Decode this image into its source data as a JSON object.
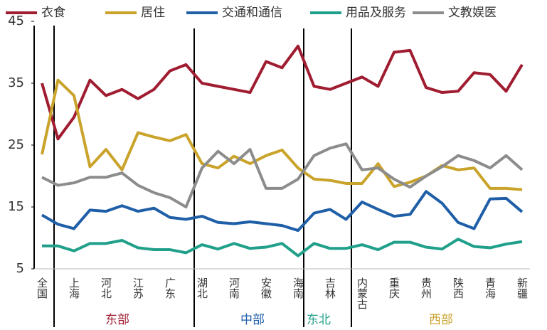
{
  "chart_data": {
    "type": "line",
    "categories": [
      "全国",
      null,
      "上海",
      null,
      "河北",
      null,
      "江苏",
      null,
      "广东",
      null,
      "湖北",
      null,
      "河南",
      null,
      "安徽",
      null,
      "海南",
      null,
      "吉林",
      null,
      "内蒙古",
      null,
      "重庆",
      null,
      "贵州",
      null,
      "陕西",
      null,
      "青海",
      null,
      "新疆"
    ],
    "series": [
      {
        "name": "衣食",
        "color": "#a01c30",
        "values": [
          35,
          26,
          29.5,
          35.5,
          33,
          34,
          32.5,
          34,
          37,
          38,
          35,
          34.5,
          34,
          33.5,
          38.5,
          37.5,
          41,
          34.5,
          34,
          35,
          36,
          34.5,
          40,
          40.3,
          34.3,
          33.5,
          33.7,
          36.7,
          36.4,
          33.7,
          38
        ]
      },
      {
        "name": "居住",
        "color": "#c9a32a",
        "values": [
          23.5,
          35.5,
          33,
          21.5,
          24.3,
          21,
          27,
          26.3,
          25.7,
          26.7,
          22,
          21.3,
          23.2,
          22,
          23.3,
          24.2,
          21.3,
          19.5,
          19.3,
          18.8,
          18.8,
          22,
          18.3,
          19,
          20,
          21.7,
          21,
          21.3,
          18,
          18,
          17.8
        ]
      },
      {
        "name": "交通和通信",
        "color": "#1f5fa8",
        "values": [
          13.7,
          12.2,
          11.5,
          14.5,
          14.3,
          15.2,
          14.3,
          14.8,
          13.3,
          13,
          13.5,
          12.5,
          12.3,
          12.6,
          12.3,
          12,
          11.2,
          14,
          14.6,
          13,
          15.8,
          14.6,
          13.5,
          13.8,
          17.5,
          15.6,
          12.5,
          11.5,
          16.3,
          16.4,
          14.2
        ]
      },
      {
        "name": "用品及服务",
        "color": "#20a08a",
        "values": [
          8.7,
          8.7,
          7.9,
          9.1,
          9.1,
          9.6,
          8.4,
          8.1,
          8.1,
          7.6,
          8.9,
          8.2,
          9.1,
          8.3,
          8.5,
          9.1,
          7.1,
          9.1,
          8.3,
          8.3,
          8.9,
          8.1,
          9.3,
          9.3,
          8.5,
          8.2,
          9.8,
          8.6,
          8.4,
          9,
          9.4
        ]
      },
      {
        "name": "文教娱医",
        "color": "#8c8c8c",
        "values": [
          19.8,
          18.5,
          18.9,
          19.8,
          19.8,
          20.5,
          18.5,
          17.3,
          16.5,
          15,
          21.3,
          24,
          22,
          24.3,
          18,
          18,
          19.5,
          23.3,
          24.5,
          25.2,
          21,
          21.3,
          19.5,
          18.2,
          20,
          21.5,
          23.3,
          22.5,
          21.3,
          23.3,
          21
        ]
      }
    ],
    "ylim": [
      5,
      45
    ],
    "yticks": [
      5,
      15,
      25,
      35,
      45
    ],
    "annotations": [
      {
        "text": "东部",
        "color": "#a01c30"
      },
      {
        "text": "中部",
        "color": "#1f5fa8"
      },
      {
        "text": "东北",
        "color": "#20a08a"
      },
      {
        "text": "西部",
        "color": "#c9a32a"
      }
    ]
  }
}
